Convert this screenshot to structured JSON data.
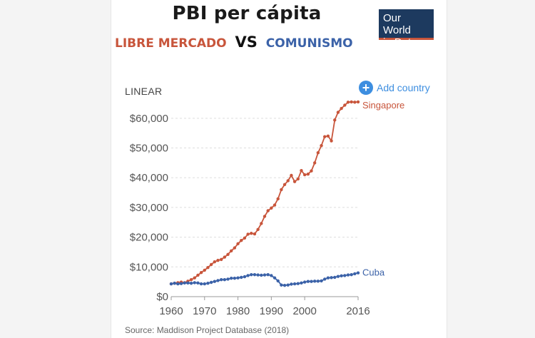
{
  "header": {
    "title": "PBI per cápita",
    "subtitle_left": "LIBRE MERCADO",
    "subtitle_vs": "VS",
    "subtitle_right": "COMUNISMO",
    "logo_line1": "Our World",
    "logo_line2": "in Data"
  },
  "controls": {
    "scale_label": "LINEAR",
    "add_country_label": "Add country",
    "add_icon": "plus-circle-icon"
  },
  "footer": {
    "source": "Source: Maddison Project Database (2018)"
  },
  "colors": {
    "singapore": "#c8553b",
    "cuba": "#3b62a8",
    "grid": "#dddddd",
    "accent": "#3d8ee0"
  },
  "chart_data": {
    "type": "line",
    "title": "PBI per cápita",
    "xlabel": "",
    "ylabel": "",
    "xlim": [
      1960,
      2016
    ],
    "ylim": [
      0,
      65000
    ],
    "xticks": [
      1960,
      1970,
      1980,
      1990,
      2000,
      2016
    ],
    "xtick_labels": [
      "1960",
      "1970",
      "1980",
      "1990",
      "2000",
      "2016"
    ],
    "yticks": [
      0,
      10000,
      20000,
      30000,
      40000,
      50000,
      60000
    ],
    "ytick_labels": [
      "$0",
      "$10,000",
      "$20,000",
      "$30,000",
      "$40,000",
      "$50,000",
      "$60,000"
    ],
    "grid": true,
    "legend": "inline labels at line ends",
    "series": [
      {
        "name": "Singapore",
        "color": "#c8553b",
        "x": [
          1960,
          1961,
          1962,
          1963,
          1964,
          1965,
          1966,
          1967,
          1968,
          1969,
          1970,
          1971,
          1972,
          1973,
          1974,
          1975,
          1976,
          1977,
          1978,
          1979,
          1980,
          1981,
          1982,
          1983,
          1984,
          1985,
          1986,
          1987,
          1988,
          1989,
          1990,
          1991,
          1992,
          1993,
          1994,
          1995,
          1996,
          1997,
          1998,
          1999,
          2000,
          2001,
          2002,
          2003,
          2004,
          2005,
          2006,
          2007,
          2008,
          2009,
          2010,
          2011,
          2012,
          2013,
          2014,
          2015,
          2016
        ],
        "y": [
          4300,
          4500,
          4700,
          4900,
          4700,
          5200,
          5700,
          6300,
          7200,
          8100,
          8900,
          9800,
          10800,
          11700,
          12200,
          12500,
          13300,
          14200,
          15400,
          16400,
          17800,
          18900,
          19700,
          21000,
          21300,
          21100,
          22600,
          24600,
          27000,
          28900,
          29800,
          30800,
          32900,
          36000,
          37700,
          39000,
          40800,
          38700,
          39600,
          42400,
          41000,
          41200,
          42300,
          45000,
          48400,
          50800,
          53800,
          54000,
          52400,
          59400,
          62000,
          63300,
          64400,
          65400,
          65500,
          65400,
          65500
        ]
      },
      {
        "name": "Cuba",
        "color": "#3b62a8",
        "x": [
          1960,
          1961,
          1962,
          1963,
          1964,
          1965,
          1966,
          1967,
          1968,
          1969,
          1970,
          1971,
          1972,
          1973,
          1974,
          1975,
          1976,
          1977,
          1978,
          1979,
          1980,
          1981,
          1982,
          1983,
          1984,
          1985,
          1986,
          1987,
          1988,
          1989,
          1990,
          1991,
          1992,
          1993,
          1994,
          1995,
          1996,
          1997,
          1998,
          1999,
          2000,
          2001,
          2002,
          2003,
          2004,
          2005,
          2006,
          2007,
          2008,
          2009,
          2010,
          2011,
          2012,
          2013,
          2014,
          2015,
          2016
        ],
        "y": [
          4300,
          4500,
          4300,
          4400,
          4600,
          4600,
          4500,
          4700,
          4600,
          4300,
          4300,
          4500,
          4800,
          5100,
          5400,
          5700,
          5700,
          5900,
          6200,
          6200,
          6300,
          6500,
          6700,
          7100,
          7400,
          7400,
          7300,
          7200,
          7300,
          7400,
          7100,
          6300,
          5300,
          3900,
          3800,
          3900,
          4200,
          4300,
          4400,
          4600,
          4900,
          5100,
          5100,
          5200,
          5200,
          5300,
          5900,
          6300,
          6400,
          6500,
          6800,
          7000,
          7100,
          7300,
          7400,
          7700,
          8000
        ]
      }
    ]
  }
}
